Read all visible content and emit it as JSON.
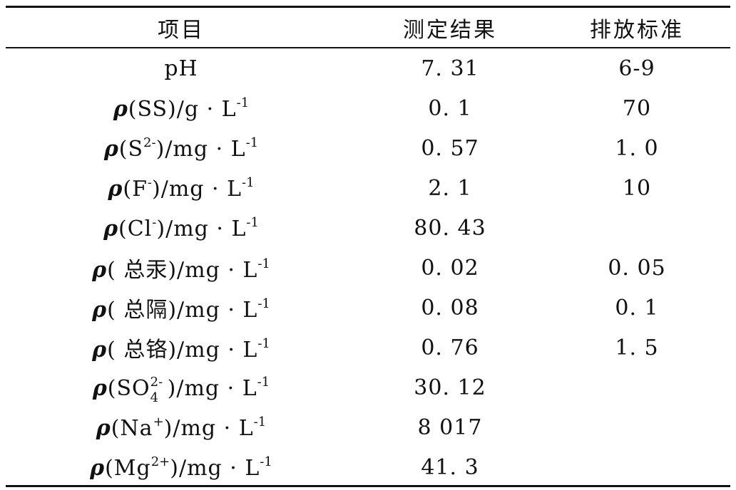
{
  "table": {
    "headers": [
      "项目",
      "测定结果",
      "排放标准"
    ],
    "rows": [
      {
        "item": {
          "prefix": "",
          "species": "pH",
          "sup": "",
          "sub": "",
          "close": "",
          "unit": "",
          "unit_sup": ""
        },
        "result": "7. 31",
        "standard": "6-9"
      },
      {
        "item": {
          "prefix": "ρ",
          "species": "(SS)",
          "sup": "",
          "sub": "",
          "close": "",
          "unit": "/g · L",
          "unit_sup": "-1"
        },
        "result": "0. 1",
        "standard": "70"
      },
      {
        "item": {
          "prefix": "ρ",
          "species": "(S",
          "sup": "2-",
          "sub": "",
          "close": ")",
          "unit": "/mg · L",
          "unit_sup": "-1"
        },
        "result": "0. 57",
        "standard": "1. 0"
      },
      {
        "item": {
          "prefix": "ρ",
          "species": "(F",
          "sup": "-",
          "sub": "",
          "close": ")",
          "unit": "/mg · L",
          "unit_sup": "-1"
        },
        "result": "2. 1",
        "standard": "10"
      },
      {
        "item": {
          "prefix": "ρ",
          "species": "(Cl",
          "sup": "-",
          "sub": "",
          "close": ")",
          "unit": "/mg · L",
          "unit_sup": "-1"
        },
        "result": "80. 43",
        "standard": ""
      },
      {
        "item": {
          "prefix": "ρ",
          "species": "( 总汞)",
          "sup": "",
          "sub": "",
          "close": "",
          "unit": "/mg · L",
          "unit_sup": "-1"
        },
        "result": "0. 02",
        "standard": "0. 05"
      },
      {
        "item": {
          "prefix": "ρ",
          "species": "( 总隔)",
          "sup": "",
          "sub": "",
          "close": "",
          "unit": "/mg · L",
          "unit_sup": "-1"
        },
        "result": "0. 08",
        "standard": "0. 1"
      },
      {
        "item": {
          "prefix": "ρ",
          "species": "( 总铬)",
          "sup": "",
          "sub": "",
          "close": "",
          "unit": "/mg · L",
          "unit_sup": "-1"
        },
        "result": "0. 76",
        "standard": "1. 5"
      },
      {
        "item": {
          "prefix": "ρ",
          "species": "(SO",
          "sup": "2-",
          "sub": "4",
          "close": ")",
          "unit": "/mg · L",
          "unit_sup": "-1"
        },
        "result": "30. 12",
        "standard": ""
      },
      {
        "item": {
          "prefix": "ρ",
          "species": "(Na",
          "sup": "+",
          "sub": "",
          "close": ")",
          "unit": "/mg · L",
          "unit_sup": "-1"
        },
        "result": "8 017",
        "standard": ""
      },
      {
        "item": {
          "prefix": "ρ",
          "species": "(Mg",
          "sup": "2+",
          "sub": "",
          "close": ")",
          "unit": "/mg · L",
          "unit_sup": "-1"
        },
        "result": "41. 3",
        "standard": ""
      }
    ]
  }
}
